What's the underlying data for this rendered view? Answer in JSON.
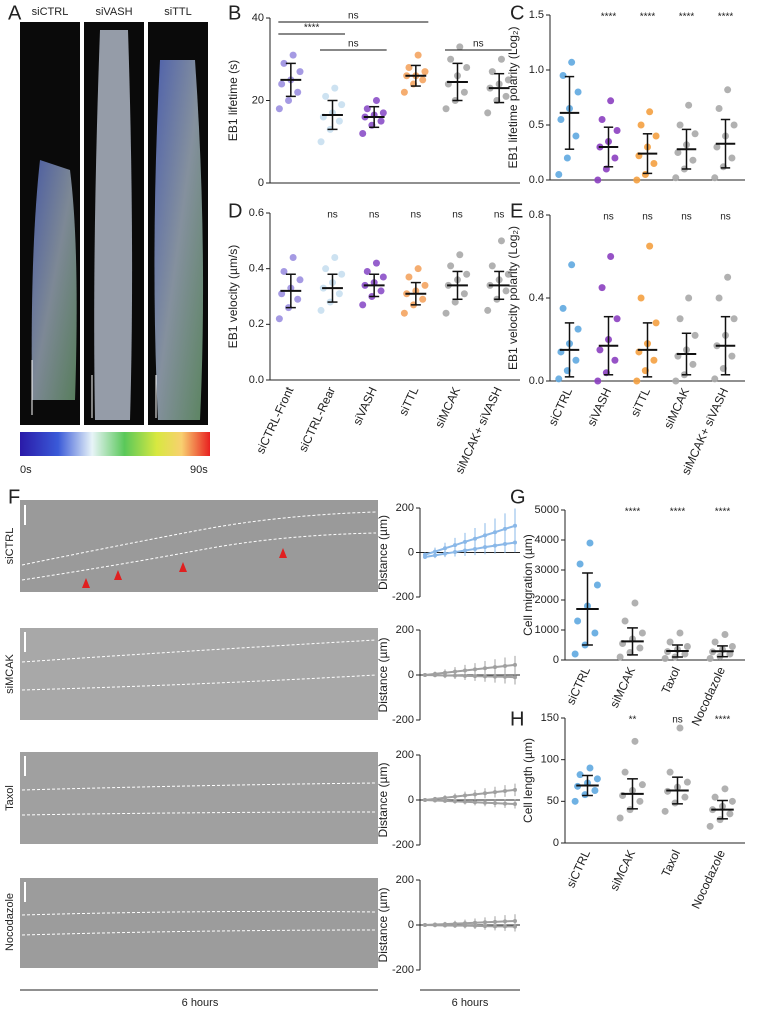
{
  "panel_labels": [
    "A",
    "B",
    "C",
    "D",
    "E",
    "F",
    "G",
    "H"
  ],
  "image_labels": [
    "siCTRL",
    "siVASH",
    "siTTL"
  ],
  "colorbar": {
    "min_label": "0s",
    "max_label": "90s"
  },
  "row_labels": [
    "siCTRL",
    "siMCAK",
    "Taxol",
    "Nocodazole"
  ],
  "time_labels": [
    "6 hours",
    "6 hours"
  ],
  "chart_data": [
    {
      "type": "dot",
      "ylabel": "EB1 lifetime (s)",
      "categories": [
        null,
        null,
        null,
        null,
        null,
        null
      ],
      "colors": [
        "#9b8fe0",
        "#c8dff0",
        "#8b4fc8",
        "#f4a460",
        "#a8a8a8",
        "#a8a8a8"
      ],
      "values": [
        25,
        16.5,
        16,
        26,
        24.5,
        23
      ],
      "errors": [
        4,
        3.5,
        2.5,
        2.5,
        4.5,
        3.5
      ],
      "points": [
        [
          18,
          20,
          22,
          24,
          25,
          27,
          29,
          31
        ],
        [
          10,
          13,
          15,
          16,
          17,
          19,
          21,
          23
        ],
        [
          12,
          14,
          15,
          16,
          16.5,
          17,
          18,
          20
        ],
        [
          22,
          24,
          25,
          26,
          26,
          27,
          28,
          31
        ],
        [
          18,
          20,
          22,
          24,
          26,
          28,
          30,
          33
        ],
        [
          17,
          20,
          21,
          23,
          24,
          25,
          27,
          30
        ]
      ],
      "comparisons": [
        {
          "from": 0,
          "to": 3,
          "label": "ns"
        },
        {
          "from": 0,
          "to": 1,
          "label": "****"
        },
        {
          "from": 1,
          "to": 2,
          "label": "ns"
        },
        {
          "from": 4,
          "to": 5,
          "label": "ns"
        }
      ],
      "ylim": [
        0,
        40
      ],
      "yticks": [
        0,
        20,
        40
      ]
    },
    {
      "type": "dot",
      "ylabel": "EB1 lifetime polarity (Log₂)",
      "categories": [
        null,
        null,
        null,
        null,
        null
      ],
      "colors": [
        "#5fa8e0",
        "#8b3fc0",
        "#f4a040",
        "#a8a8a8",
        "#a8a8a8"
      ],
      "values": [
        0.61,
        0.3,
        0.24,
        0.28,
        0.33
      ],
      "errors": [
        0.33,
        0.18,
        0.18,
        0.18,
        0.22
      ],
      "points": [
        [
          0.05,
          0.2,
          0.4,
          0.55,
          0.65,
          0.8,
          0.95,
          1.07
        ],
        [
          0,
          0.1,
          0.2,
          0.3,
          0.35,
          0.45,
          0.55,
          0.72
        ],
        [
          0,
          0.05,
          0.15,
          0.22,
          0.3,
          0.4,
          0.5,
          0.62
        ],
        [
          0.02,
          0.1,
          0.18,
          0.25,
          0.32,
          0.42,
          0.5,
          0.68
        ],
        [
          0.02,
          0.12,
          0.2,
          0.3,
          0.4,
          0.5,
          0.65,
          0.82
        ]
      ],
      "significance": [
        null,
        "****",
        "****",
        "****",
        "****"
      ],
      "ylim": [
        0,
        1.5
      ],
      "yticks": [
        {
          "value": 0,
          "label": "0.0"
        },
        0.5,
        {
          "value": 1,
          "label": "1.0"
        },
        1.5
      ]
    },
    {
      "type": "dot",
      "ylabel": "EB1 velocity (µm/s)",
      "categories": [
        "siCTRL-Front",
        "siCTRL-Rear",
        "siVASH",
        "siTTL",
        "siMCAK",
        "siMCAK+ siVASH"
      ],
      "colors": [
        "#9b8fe0",
        "#c8dff0",
        "#8b4fc8",
        "#f4a460",
        "#a8a8a8",
        "#a8a8a8"
      ],
      "values": [
        0.32,
        0.33,
        0.34,
        0.31,
        0.34,
        0.34
      ],
      "errors": [
        0.06,
        0.05,
        0.04,
        0.04,
        0.05,
        0.05
      ],
      "points": [
        [
          0.22,
          0.26,
          0.29,
          0.31,
          0.33,
          0.36,
          0.39,
          0.44
        ],
        [
          0.25,
          0.28,
          0.31,
          0.33,
          0.35,
          0.38,
          0.4,
          0.44
        ],
        [
          0.27,
          0.3,
          0.32,
          0.34,
          0.35,
          0.37,
          0.39,
          0.42
        ],
        [
          0.24,
          0.27,
          0.29,
          0.31,
          0.32,
          0.34,
          0.37,
          0.4
        ],
        [
          0.24,
          0.28,
          0.31,
          0.34,
          0.36,
          0.38,
          0.41,
          0.45
        ],
        [
          0.25,
          0.29,
          0.32,
          0.34,
          0.36,
          0.38,
          0.41,
          0.5
        ]
      ],
      "significance": [
        null,
        "ns",
        "ns",
        "ns",
        "ns",
        "ns"
      ],
      "ylim": [
        0,
        0.6
      ],
      "yticks": [
        {
          "value": 0,
          "label": "0.0"
        },
        0.2,
        0.4,
        0.6
      ]
    },
    {
      "type": "dot",
      "ylabel": "EB1 velocity polarity (Log₂)",
      "categories": [
        "siCTRL",
        "siVASH",
        "siTTL",
        "siMCAK",
        "siMCAK+ siVASH"
      ],
      "colors": [
        "#5fa8e0",
        "#8b3fc0",
        "#f4a040",
        "#a8a8a8",
        "#a8a8a8"
      ],
      "values": [
        0.15,
        0.17,
        0.15,
        0.13,
        0.17
      ],
      "errors": [
        0.13,
        0.14,
        0.13,
        0.1,
        0.14
      ],
      "points": [
        [
          0.01,
          0.05,
          0.1,
          0.14,
          0.18,
          0.25,
          0.35,
          0.56
        ],
        [
          0,
          0.04,
          0.1,
          0.15,
          0.2,
          0.3,
          0.45,
          0.6
        ],
        [
          0,
          0.05,
          0.1,
          0.14,
          0.18,
          0.28,
          0.4,
          0.65
        ],
        [
          0,
          0.03,
          0.08,
          0.12,
          0.15,
          0.22,
          0.3,
          0.4
        ],
        [
          0.01,
          0.06,
          0.12,
          0.17,
          0.22,
          0.3,
          0.4,
          0.5
        ]
      ],
      "significance": [
        null,
        "ns",
        "ns",
        "ns",
        "ns"
      ],
      "ylim": [
        0,
        0.8
      ],
      "yticks": [
        {
          "value": 0,
          "label": "0.0"
        },
        0.4,
        0.8
      ]
    },
    {
      "type": "dot",
      "ylabel": "Cell migration (µm)",
      "categories": [
        "siCTRL",
        "siMCAK",
        "Taxol",
        "Nocodazole"
      ],
      "colors": [
        "#5fa8e0",
        "#a8a8a8",
        "#a8a8a8",
        "#a8a8a8"
      ],
      "values": [
        1700,
        620,
        300,
        290
      ],
      "errors": [
        1200,
        450,
        200,
        180
      ],
      "points": [
        [
          200,
          500,
          900,
          1300,
          1800,
          2500,
          3200,
          3900
        ],
        [
          100,
          250,
          400,
          550,
          700,
          900,
          1300,
          1900
        ],
        [
          50,
          100,
          200,
          280,
          350,
          450,
          600,
          900
        ],
        [
          50,
          120,
          200,
          270,
          350,
          450,
          600,
          850
        ]
      ],
      "significance": [
        null,
        "****",
        "****",
        "****"
      ],
      "ylim": [
        0,
        5000
      ],
      "yticks": [
        0,
        1000,
        2000,
        3000,
        4000,
        5000
      ]
    },
    {
      "type": "dot",
      "ylabel": "Cell length (µm)",
      "categories": [
        "siCTRL",
        "siMCAK",
        "Taxol",
        "Nocodazole"
      ],
      "colors": [
        "#5fa8e0",
        "#a8a8a8",
        "#a8a8a8",
        "#a8a8a8"
      ],
      "values": [
        69,
        59,
        63,
        40
      ],
      "errors": [
        12,
        18,
        16,
        11
      ],
      "points": [
        [
          50,
          58,
          63,
          68,
          72,
          77,
          82,
          90
        ],
        [
          30,
          40,
          50,
          57,
          63,
          70,
          85,
          122
        ],
        [
          38,
          48,
          55,
          62,
          67,
          73,
          85,
          138
        ],
        [
          20,
          28,
          35,
          40,
          44,
          50,
          55,
          65
        ]
      ],
      "significance": [
        null,
        "**",
        "ns",
        "****"
      ],
      "ylim": [
        0,
        150
      ],
      "yticks": [
        0,
        50,
        100,
        150
      ]
    },
    {
      "type": "line",
      "ylabel": "Distance (µm)",
      "ylim": [
        -200,
        200
      ],
      "yticks": [
        -200,
        0,
        200
      ],
      "series": [
        {
          "color": "#8ab8e8",
          "values": [
            -10,
            4,
            19,
            33,
            48,
            62,
            77,
            91,
            106,
            120
          ],
          "errors": [
            10,
            18,
            25,
            33,
            40,
            48,
            55,
            62,
            70,
            78
          ]
        },
        {
          "color": "#8ab8e8",
          "values": [
            -20,
            -13,
            -5,
            2,
            9,
            16,
            24,
            31,
            38,
            45
          ],
          "errors": [
            8,
            12,
            16,
            20,
            24,
            28,
            32,
            36,
            40,
            44
          ]
        }
      ]
    },
    {
      "type": "line",
      "ylabel": "Distance (µm)",
      "ylim": [
        -200,
        200
      ],
      "yticks": [
        -200,
        0,
        200
      ],
      "series": [
        {
          "color": "#a0a0a0",
          "values": [
            0,
            5,
            10,
            15,
            20,
            25,
            30,
            35,
            40,
            45
          ],
          "errors": [
            5,
            10,
            15,
            20,
            25,
            28,
            32,
            35,
            38,
            40
          ]
        },
        {
          "color": "#a0a0a0",
          "values": [
            0,
            -1,
            -2,
            -3,
            -4,
            -5,
            -6,
            -7,
            -8,
            -10
          ],
          "errors": [
            5,
            8,
            12,
            15,
            18,
            21,
            24,
            27,
            30,
            32
          ]
        }
      ]
    },
    {
      "type": "line",
      "ylabel": "Distance (µm)",
      "ylim": [
        -200,
        200
      ],
      "yticks": [
        -200,
        0,
        200
      ],
      "series": [
        {
          "color": "#a0a0a0",
          "values": [
            0,
            5,
            10,
            15,
            20,
            25,
            30,
            35,
            40,
            45
          ],
          "errors": [
            5,
            8,
            11,
            14,
            17,
            20,
            22,
            24,
            26,
            28
          ]
        },
        {
          "color": "#a0a0a0",
          "values": [
            0,
            -2,
            -4,
            -6,
            -8,
            -10,
            -12,
            -14,
            -16,
            -18
          ],
          "errors": [
            4,
            6,
            8,
            10,
            12,
            14,
            16,
            18,
            19,
            20
          ]
        }
      ]
    },
    {
      "type": "line",
      "ylabel": "Distance (µm)",
      "ylim": [
        -200,
        200
      ],
      "yticks": [
        -200,
        0,
        200
      ],
      "series": [
        {
          "color": "#a0a0a0",
          "values": [
            0,
            2,
            4,
            6,
            8,
            10,
            12,
            14,
            16,
            18
          ],
          "errors": [
            4,
            7,
            10,
            13,
            16,
            19,
            22,
            25,
            28,
            30
          ]
        },
        {
          "color": "#a0a0a0",
          "values": [
            0,
            -1,
            -2,
            -3,
            -3,
            -4,
            -5,
            -6,
            -6,
            -7
          ],
          "errors": [
            4,
            6,
            8,
            10,
            12,
            14,
            16,
            18,
            20,
            22
          ]
        }
      ]
    }
  ]
}
